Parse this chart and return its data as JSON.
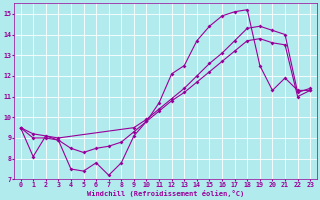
{
  "xlabel": "Windchill (Refroidissement éolien,°C)",
  "background_color": "#b2ebee",
  "line_color": "#990099",
  "grid_color": "#ffffff",
  "xlim": [
    -0.5,
    23.5
  ],
  "ylim": [
    7,
    15.5
  ],
  "xticks": [
    0,
    1,
    2,
    3,
    4,
    5,
    6,
    7,
    8,
    9,
    10,
    11,
    12,
    13,
    14,
    15,
    16,
    17,
    18,
    19,
    20,
    21,
    22,
    23
  ],
  "yticks": [
    7,
    8,
    9,
    10,
    11,
    12,
    13,
    14,
    15
  ],
  "series1_x": [
    0,
    1,
    2,
    3,
    4,
    5,
    6,
    7,
    8,
    9,
    10,
    11,
    12,
    13,
    14,
    15,
    16,
    17,
    18,
    19,
    20,
    21,
    22,
    23
  ],
  "series1_y": [
    9.5,
    8.1,
    9.1,
    8.9,
    7.5,
    7.4,
    7.8,
    7.2,
    7.8,
    9.1,
    9.8,
    10.7,
    12.1,
    12.5,
    13.7,
    14.4,
    14.9,
    15.1,
    15.2,
    12.5,
    11.3,
    11.9,
    11.3,
    11.3
  ],
  "series2_x": [
    0,
    1,
    3,
    9,
    10,
    11,
    12,
    13,
    14,
    15,
    16,
    17,
    18,
    19,
    20,
    21,
    22,
    23
  ],
  "series2_y": [
    9.5,
    9.2,
    9.0,
    9.5,
    9.9,
    10.4,
    10.9,
    11.4,
    12.0,
    12.6,
    13.1,
    13.7,
    14.3,
    14.4,
    14.2,
    14.0,
    11.2,
    11.4
  ],
  "series3_x": [
    0,
    1,
    2,
    3,
    4,
    5,
    6,
    7,
    8,
    9,
    10,
    11,
    12,
    13,
    14,
    15,
    16,
    17,
    18,
    19,
    20,
    21,
    22,
    23
  ],
  "series3_y": [
    9.5,
    9.0,
    9.0,
    8.9,
    8.5,
    8.3,
    8.5,
    8.6,
    8.8,
    9.3,
    9.8,
    10.3,
    10.8,
    11.2,
    11.7,
    12.2,
    12.7,
    13.2,
    13.7,
    13.8,
    13.6,
    13.5,
    11.0,
    11.3
  ]
}
